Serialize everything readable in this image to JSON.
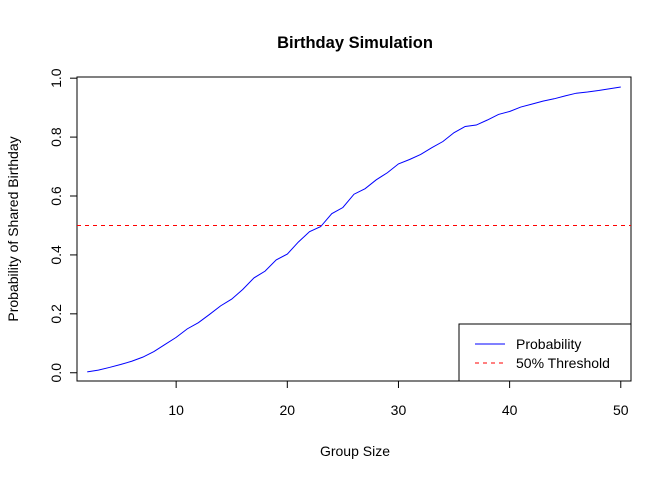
{
  "chart_data": {
    "type": "line",
    "title": "Birthday Simulation",
    "xlabel": "Group Size",
    "ylabel": "Probability of Shared Birthday",
    "xlim": [
      1.08,
      50.92
    ],
    "ylim": [
      -0.028,
      1.004
    ],
    "x_ticks": [
      10,
      20,
      30,
      40,
      50
    ],
    "y_ticks": [
      0.0,
      0.2,
      0.4,
      0.6,
      0.8,
      1.0
    ],
    "x_tick_labels": [
      "10",
      "20",
      "30",
      "40",
      "50"
    ],
    "y_tick_labels": [
      "0.0",
      "0.2",
      "0.4",
      "0.6",
      "0.8",
      "1.0"
    ],
    "grid": false,
    "legend_position": "bottom-right",
    "x": [
      2,
      3,
      4,
      5,
      6,
      7,
      8,
      9,
      10,
      11,
      12,
      13,
      14,
      15,
      16,
      17,
      18,
      19,
      20,
      21,
      22,
      23,
      24,
      25,
      26,
      27,
      28,
      29,
      30,
      31,
      32,
      33,
      34,
      35,
      36,
      37,
      38,
      39,
      40,
      41,
      42,
      43,
      44,
      45,
      46,
      47,
      48,
      49,
      50
    ],
    "series": [
      {
        "name": "Probability",
        "color": "#0000ff",
        "style": "solid",
        "values": [
          0.003,
          0.009,
          0.018,
          0.028,
          0.039,
          0.053,
          0.072,
          0.096,
          0.12,
          0.149,
          0.17,
          0.198,
          0.227,
          0.25,
          0.283,
          0.322,
          0.345,
          0.383,
          0.403,
          0.444,
          0.479,
          0.496,
          0.54,
          0.561,
          0.606,
          0.625,
          0.655,
          0.679,
          0.709,
          0.724,
          0.741,
          0.764,
          0.785,
          0.815,
          0.836,
          0.841,
          0.858,
          0.877,
          0.887,
          0.902,
          0.912,
          0.922,
          0.93,
          0.94,
          0.949,
          0.953,
          0.958,
          0.964,
          0.97
        ]
      }
    ],
    "reference_lines": [
      {
        "name": "50% Threshold",
        "y": 0.5,
        "color": "#ff0000",
        "style": "dashed"
      }
    ]
  }
}
